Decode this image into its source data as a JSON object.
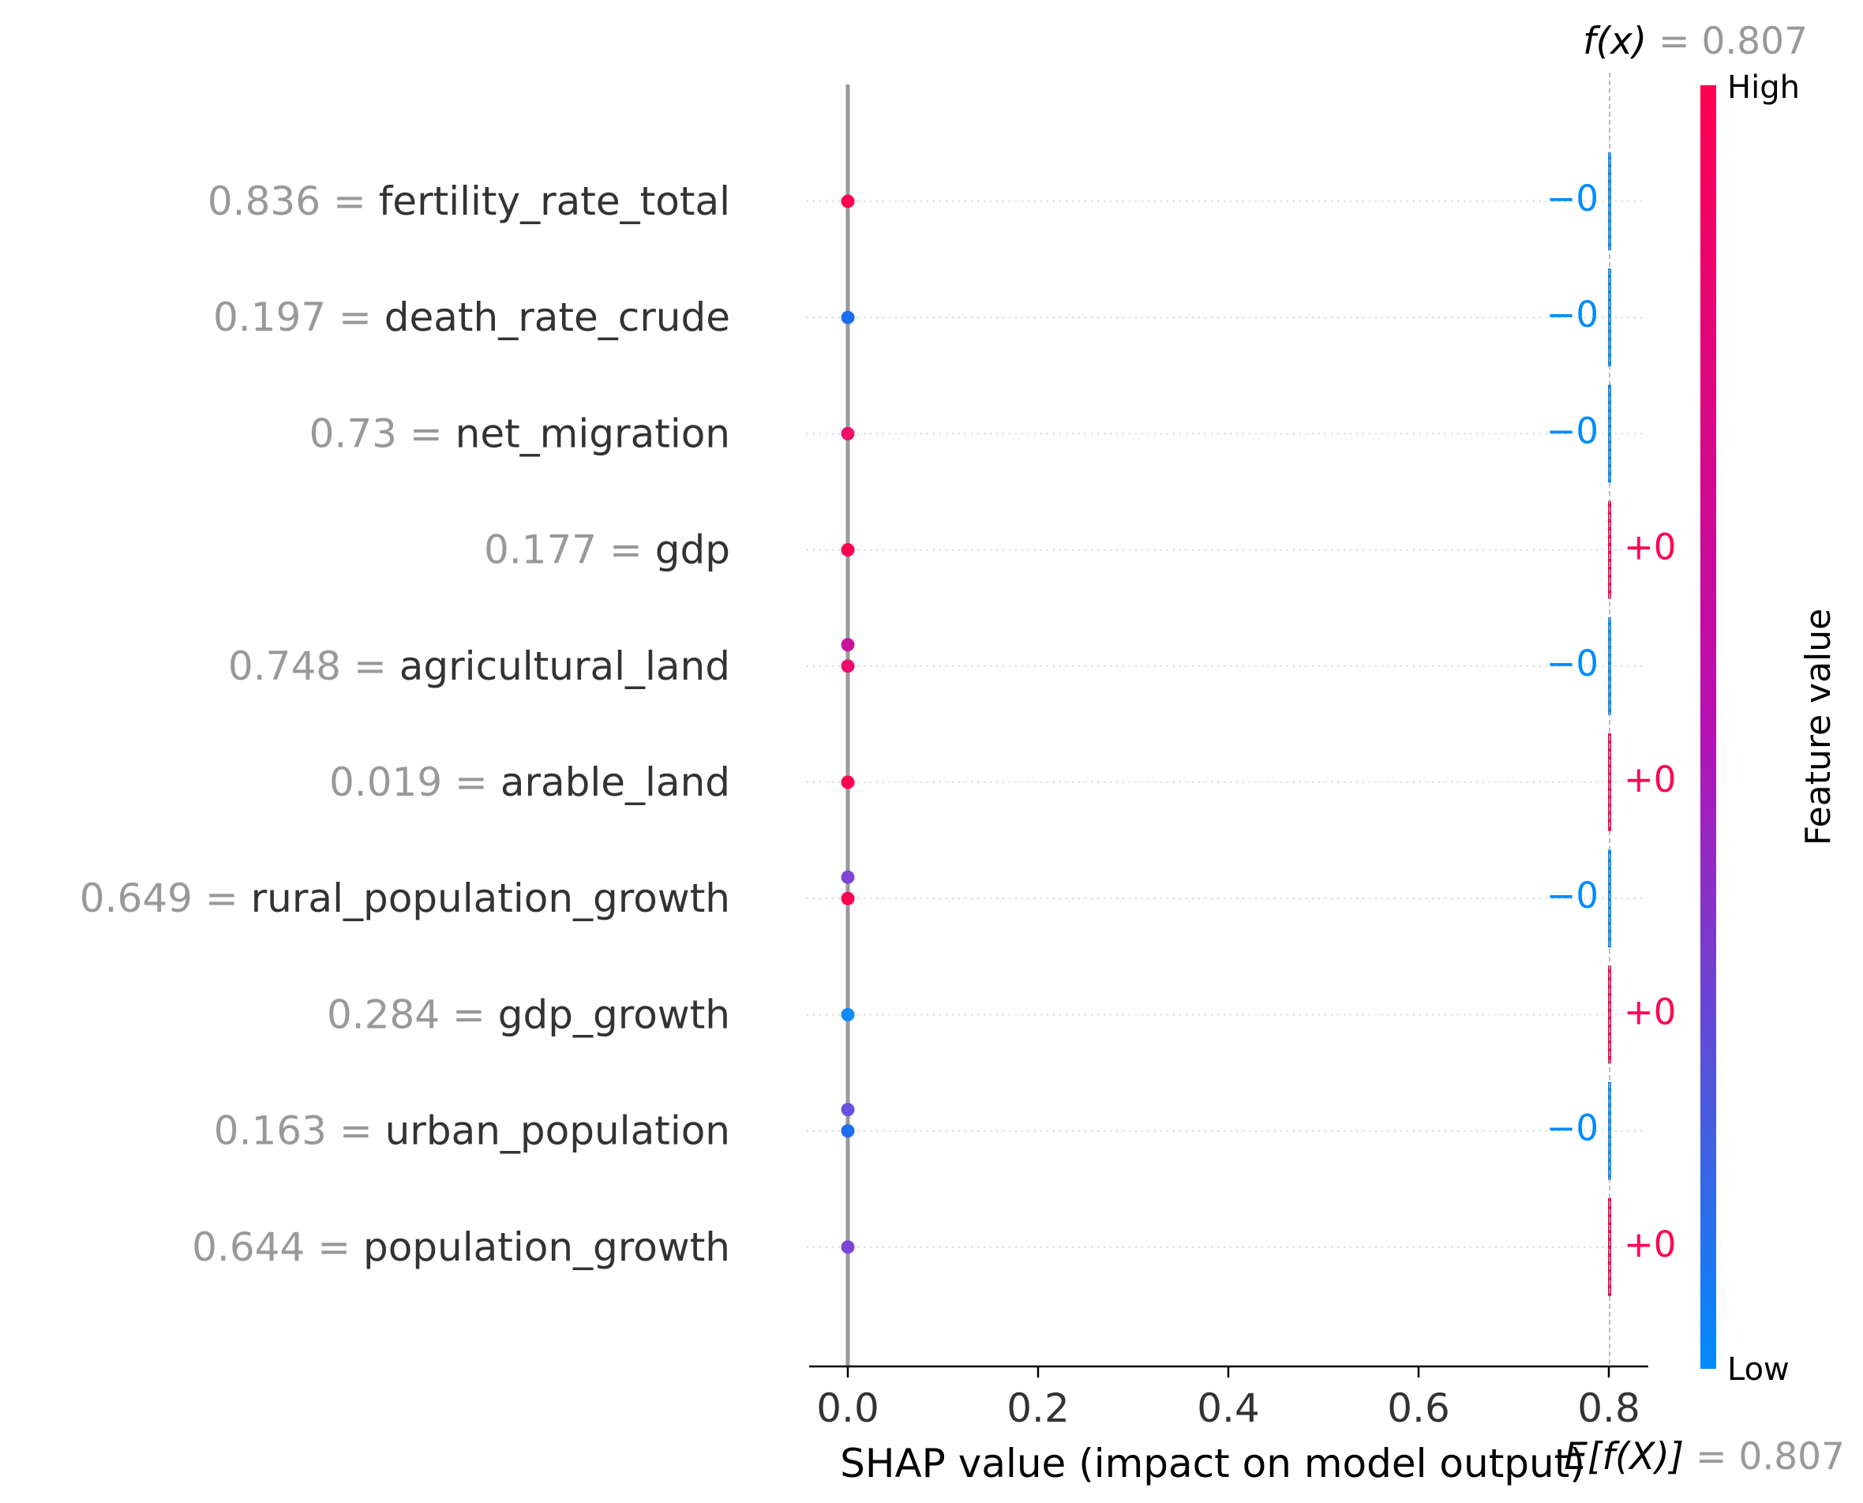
{
  "chart_data": {
    "type": "scatter",
    "subtype": "shap-decision-waterfall",
    "fx": {
      "label": "f(x)",
      "value": "0.807"
    },
    "expected": {
      "label": "E[f(X)]",
      "value": "0.807"
    },
    "xlabel": "SHAP value (impact on model output)",
    "xlim": [
      -0.05,
      0.845
    ],
    "x_ticks": [
      "0.0",
      "0.2",
      "0.4",
      "0.6",
      "0.8"
    ],
    "x_tick_values": [
      0.0,
      0.2,
      0.4,
      0.6,
      0.8
    ],
    "grid": "dotted horizontal lines per feature",
    "features": [
      {
        "name": "fertility_rate_total",
        "value": "0.836",
        "contribution": "−0",
        "sign": "negative",
        "points": [
          {
            "shap": 0.0,
            "color": "#ff0051"
          }
        ]
      },
      {
        "name": "death_rate_crude",
        "value": "0.197",
        "contribution": "−0",
        "sign": "negative",
        "points": [
          {
            "shap": 0.0,
            "color": "#1e6cf0"
          }
        ]
      },
      {
        "name": "net_migration",
        "value": "0.73",
        "contribution": "−0",
        "sign": "negative",
        "points": [
          {
            "shap": 0.0,
            "color": "#f0106a"
          }
        ]
      },
      {
        "name": "gdp",
        "value": "0.177",
        "contribution": "+0",
        "sign": "positive",
        "points": [
          {
            "shap": 0.0,
            "color": "#ff0051"
          }
        ]
      },
      {
        "name": "agricultural_land",
        "value": "0.748",
        "contribution": "−0",
        "sign": "negative",
        "points": [
          {
            "shap": 0.0,
            "color": "#c5139a",
            "offset": -1
          },
          {
            "shap": 0.0,
            "color": "#ee0b6d"
          }
        ]
      },
      {
        "name": "arable_land",
        "value": "0.019",
        "contribution": "+0",
        "sign": "positive",
        "points": [
          {
            "shap": 0.0,
            "color": "#ff0051"
          }
        ]
      },
      {
        "name": "rural_population_growth",
        "value": "0.649",
        "contribution": "−0",
        "sign": "negative",
        "points": [
          {
            "shap": 0.0,
            "color": "#7f44d6",
            "offset": -1
          },
          {
            "shap": 0.0,
            "color": "#ff0051"
          }
        ]
      },
      {
        "name": "gdp_growth",
        "value": "0.284",
        "contribution": "+0",
        "sign": "positive",
        "points": [
          {
            "shap": 0.0,
            "color": "#108bf7"
          }
        ]
      },
      {
        "name": "urban_population",
        "value": "0.163",
        "contribution": "−0",
        "sign": "negative",
        "points": [
          {
            "shap": 0.0,
            "color": "#6b4fdf",
            "offset": -1
          },
          {
            "shap": 0.0,
            "color": "#1e6cf0"
          }
        ]
      },
      {
        "name": "population_growth",
        "value": "0.644",
        "contribution": "+0",
        "sign": "positive",
        "points": [
          {
            "shap": 0.0,
            "color": "#7a45d8"
          }
        ]
      }
    ],
    "colorbar": {
      "label": "Feature value",
      "high_label": "High",
      "low_label": "Low",
      "high_color": "#ff0051",
      "mid_color": "#b711b4",
      "low_color": "#008bfb"
    },
    "colors": {
      "positive": "#ff0051",
      "negative": "#008bfb",
      "feature_value_text": "#999999",
      "feature_name_text": "#333333",
      "zero_line": "#999999"
    }
  }
}
